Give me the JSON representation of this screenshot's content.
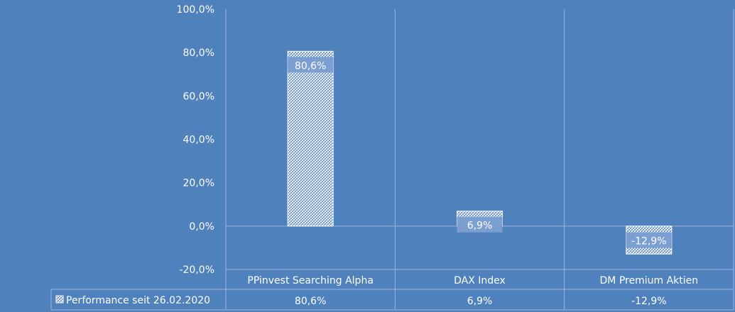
{
  "chart_data": {
    "type": "bar",
    "categories": [
      "PPinvest Searching Alpha",
      "DAX Index",
      "DM Premium Aktien"
    ],
    "series": [
      {
        "name": "Performance seit 26.02.2020",
        "values": [
          80.6,
          6.9,
          -12.9
        ],
        "value_labels": [
          "80,6%",
          "6,9%",
          "-12,9%"
        ]
      }
    ],
    "ylim": [
      -20,
      100
    ],
    "yticks": [
      100,
      80,
      60,
      40,
      20,
      0,
      -20
    ],
    "ytick_labels": [
      "100,0%",
      "80,0%",
      "60,0%",
      "40,0%",
      "20,0%",
      "0,0%",
      "-20,0%"
    ],
    "grid": "vertical",
    "legend": "data-table-left",
    "data_table": true,
    "colors": {
      "background": "#4f81bd",
      "bar_pattern_fg": "#ffffff",
      "bar_pattern_bg": "#4f81bd",
      "label_box": "#7a9fd0",
      "gridline": "#9db5dc"
    }
  }
}
